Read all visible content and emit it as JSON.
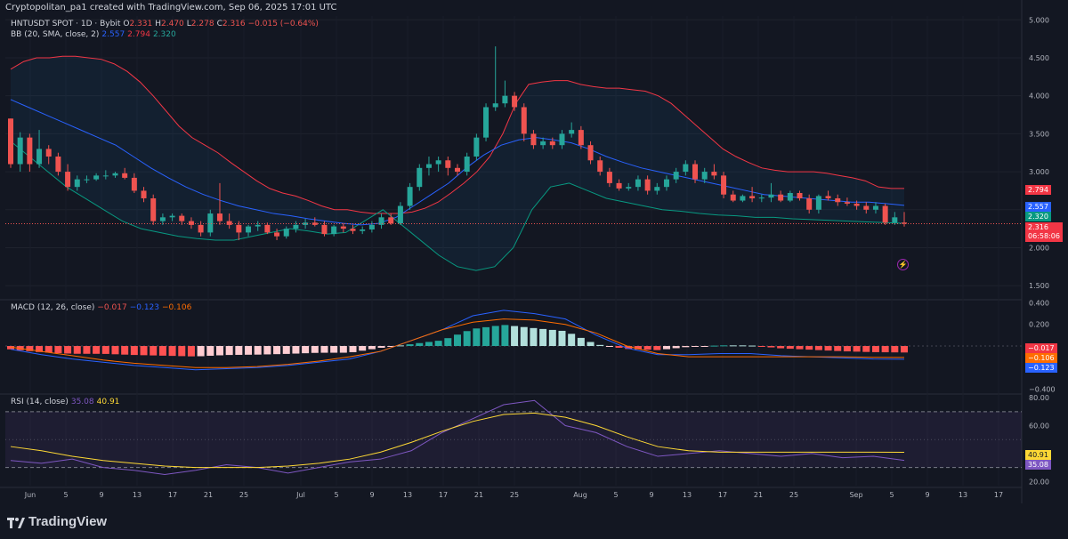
{
  "header": {
    "created": "Cryptopolitan_pa1 created with TradingView.com, Sep 06, 2025 17:01 UTC"
  },
  "price_legend": {
    "symbol": "HNTUSDT SPOT · 1D · Bybit",
    "o_label": "O",
    "o_val": "2.331",
    "h_label": "H",
    "h_val": "2.470",
    "l_label": "L",
    "l_val": "2.278",
    "c_label": "C",
    "c_val": "2.316",
    "change": "−0.015 (−0.64%)"
  },
  "bb_legend": {
    "name": "BB (20, SMA, close, 2)",
    "basis": "2.557",
    "upper": "2.794",
    "lower": "2.320"
  },
  "macd_legend": {
    "name": "MACD (12, 26, close)",
    "hist": "−0.017",
    "macd": "−0.123",
    "signal": "−0.106"
  },
  "rsi_legend": {
    "name": "RSI (14, close)",
    "rsi": "35.08",
    "ma": "40.91"
  },
  "price_axis": [
    "5.000",
    "4.500",
    "4.000",
    "3.500",
    "3.000",
    "2.500",
    "2.000",
    "1.500"
  ],
  "macd_axis": [
    "0.400",
    "0.200",
    "−0.400"
  ],
  "rsi_axis": [
    "80.00",
    "60.00",
    "20.00"
  ],
  "price_labels": {
    "upper": "2.794",
    "basis": "2.557",
    "lower": "2.320",
    "close": "2.316",
    "countdown": "06:58:06"
  },
  "macd_labels": {
    "hist": "−0.017",
    "signal": "−0.106",
    "macd": "−0.123"
  },
  "rsi_labels": {
    "ma": "40.91",
    "rsi": "35.08"
  },
  "x_axis": [
    "Jun",
    "5",
    "9",
    "13",
    "17",
    "21",
    "25",
    "Jul",
    "5",
    "9",
    "13",
    "17",
    "21",
    "25",
    "Aug",
    "5",
    "9",
    "13",
    "17",
    "21",
    "25",
    "Sep",
    "5",
    "9",
    "13",
    "17"
  ],
  "brand": "TradingView",
  "icons": {
    "flash": "lightning-icon",
    "logo": "tradingview-logo-icon"
  },
  "colors": {
    "up": "#26a69a",
    "down": "#ef5350",
    "bb_basis": "#2962ff",
    "bb_upper": "#f23645",
    "bb_lower": "#089981",
    "macd": "#2962ff",
    "signal": "#ff6d00",
    "rsi": "#7e57c2",
    "rsi_ma": "#fdd835"
  },
  "chart_data": {
    "type": "candlestick",
    "symbol": "HNTUSDT",
    "timeframe": "1D",
    "x_start": "2025-05-29",
    "ohlc": [
      [
        3.7,
        3.7,
        3.05,
        3.1
      ],
      [
        3.1,
        3.52,
        3.0,
        3.45
      ],
      [
        3.45,
        3.5,
        3.0,
        3.1
      ],
      [
        3.1,
        3.55,
        3.05,
        3.3
      ],
      [
        3.3,
        3.35,
        3.1,
        3.2
      ],
      [
        3.2,
        3.25,
        2.95,
        3.0
      ],
      [
        3.0,
        3.1,
        2.75,
        2.8
      ],
      [
        2.8,
        2.95,
        2.75,
        2.9
      ],
      [
        2.9,
        2.95,
        2.85,
        2.9
      ],
      [
        2.9,
        2.98,
        2.88,
        2.95
      ],
      [
        2.95,
        3.02,
        2.9,
        2.95
      ],
      [
        2.95,
        3.0,
        2.92,
        2.98
      ],
      [
        2.98,
        3.05,
        2.9,
        2.92
      ],
      [
        2.92,
        2.98,
        2.72,
        2.75
      ],
      [
        2.75,
        2.8,
        2.6,
        2.65
      ],
      [
        2.65,
        2.7,
        2.3,
        2.35
      ],
      [
        2.35,
        2.45,
        2.3,
        2.4
      ],
      [
        2.4,
        2.45,
        2.35,
        2.42
      ],
      [
        2.42,
        2.45,
        2.3,
        2.35
      ],
      [
        2.35,
        2.4,
        2.25,
        2.3
      ],
      [
        2.3,
        2.35,
        2.15,
        2.2
      ],
      [
        2.2,
        2.5,
        2.15,
        2.45
      ],
      [
        2.45,
        2.85,
        2.3,
        2.35
      ],
      [
        2.35,
        2.45,
        2.25,
        2.3
      ],
      [
        2.3,
        2.35,
        2.1,
        2.2
      ],
      [
        2.2,
        2.3,
        2.15,
        2.28
      ],
      [
        2.28,
        2.35,
        2.22,
        2.3
      ],
      [
        2.3,
        2.33,
        2.18,
        2.2
      ],
      [
        2.2,
        2.25,
        2.1,
        2.15
      ],
      [
        2.15,
        2.28,
        2.12,
        2.25
      ],
      [
        2.25,
        2.35,
        2.2,
        2.3
      ],
      [
        2.3,
        2.38,
        2.25,
        2.33
      ],
      [
        2.33,
        2.4,
        2.28,
        2.3
      ],
      [
        2.3,
        2.35,
        2.15,
        2.18
      ],
      [
        2.18,
        2.3,
        2.15,
        2.28
      ],
      [
        2.28,
        2.32,
        2.2,
        2.25
      ],
      [
        2.25,
        2.3,
        2.18,
        2.22
      ],
      [
        2.22,
        2.28,
        2.18,
        2.24
      ],
      [
        2.24,
        2.35,
        2.2,
        2.3
      ],
      [
        2.3,
        2.45,
        2.25,
        2.4
      ],
      [
        2.4,
        2.45,
        2.3,
        2.32
      ],
      [
        2.32,
        2.6,
        2.3,
        2.55
      ],
      [
        2.55,
        2.85,
        2.5,
        2.8
      ],
      [
        2.8,
        3.1,
        2.75,
        3.05
      ],
      [
        3.05,
        3.2,
        2.95,
        3.1
      ],
      [
        3.1,
        3.2,
        3.0,
        3.15
      ],
      [
        3.15,
        3.2,
        2.95,
        3.05
      ],
      [
        3.05,
        3.1,
        2.95,
        3.0
      ],
      [
        3.0,
        3.25,
        2.95,
        3.2
      ],
      [
        3.2,
        3.5,
        3.15,
        3.45
      ],
      [
        3.45,
        3.9,
        3.4,
        3.85
      ],
      [
        3.85,
        4.65,
        3.8,
        3.9
      ],
      [
        3.9,
        4.2,
        3.85,
        4.0
      ],
      [
        4.0,
        4.05,
        3.8,
        3.85
      ],
      [
        3.85,
        3.9,
        3.4,
        3.5
      ],
      [
        3.5,
        3.55,
        3.3,
        3.35
      ],
      [
        3.35,
        3.45,
        3.3,
        3.4
      ],
      [
        3.4,
        3.45,
        3.3,
        3.35
      ],
      [
        3.35,
        3.55,
        3.3,
        3.5
      ],
      [
        3.5,
        3.65,
        3.45,
        3.55
      ],
      [
        3.55,
        3.6,
        3.3,
        3.35
      ],
      [
        3.35,
        3.4,
        3.1,
        3.15
      ],
      [
        3.15,
        3.2,
        2.95,
        3.0
      ],
      [
        3.0,
        3.05,
        2.8,
        2.85
      ],
      [
        2.85,
        2.9,
        2.75,
        2.78
      ],
      [
        2.78,
        2.85,
        2.75,
        2.8
      ],
      [
        2.8,
        2.95,
        2.75,
        2.9
      ],
      [
        2.9,
        2.95,
        2.7,
        2.75
      ],
      [
        2.75,
        2.85,
        2.7,
        2.8
      ],
      [
        2.8,
        2.95,
        2.75,
        2.9
      ],
      [
        2.9,
        3.05,
        2.85,
        3.0
      ],
      [
        3.0,
        3.15,
        2.95,
        3.1
      ],
      [
        3.1,
        3.15,
        2.85,
        2.9
      ],
      [
        2.9,
        3.05,
        2.85,
        3.0
      ],
      [
        3.0,
        3.1,
        2.9,
        2.95
      ],
      [
        2.95,
        3.0,
        2.65,
        2.7
      ],
      [
        2.7,
        2.75,
        2.6,
        2.62
      ],
      [
        2.62,
        2.7,
        2.6,
        2.68
      ],
      [
        2.68,
        2.8,
        2.6,
        2.65
      ],
      [
        2.65,
        2.7,
        2.6,
        2.66
      ],
      [
        2.66,
        2.85,
        2.6,
        2.7
      ],
      [
        2.7,
        2.75,
        2.6,
        2.62
      ],
      [
        2.62,
        2.75,
        2.6,
        2.72
      ],
      [
        2.72,
        2.75,
        2.62,
        2.65
      ],
      [
        2.65,
        2.7,
        2.45,
        2.5
      ],
      [
        2.5,
        2.7,
        2.45,
        2.68
      ],
      [
        2.68,
        2.75,
        2.62,
        2.65
      ],
      [
        2.65,
        2.7,
        2.55,
        2.6
      ],
      [
        2.6,
        2.66,
        2.55,
        2.58
      ],
      [
        2.58,
        2.62,
        2.5,
        2.55
      ],
      [
        2.55,
        2.6,
        2.45,
        2.5
      ],
      [
        2.5,
        2.6,
        2.45,
        2.55
      ],
      [
        2.55,
        2.58,
        2.3,
        2.33
      ],
      [
        2.33,
        2.47,
        2.3,
        2.4
      ],
      [
        2.331,
        2.47,
        2.278,
        2.316
      ]
    ],
    "bb_upper": [
      4.35,
      4.45,
      4.5,
      4.5,
      4.52,
      4.52,
      4.5,
      4.48,
      4.42,
      4.32,
      4.18,
      4.0,
      3.8,
      3.6,
      3.45,
      3.35,
      3.25,
      3.12,
      3.0,
      2.88,
      2.78,
      2.72,
      2.68,
      2.62,
      2.55,
      2.5,
      2.5,
      2.47,
      2.45,
      2.45,
      2.45,
      2.47,
      2.52,
      2.6,
      2.72,
      2.85,
      3.0,
      3.2,
      3.5,
      3.9,
      4.15,
      4.18,
      4.2,
      4.2,
      4.15,
      4.12,
      4.1,
      4.1,
      4.08,
      4.06,
      4.0,
      3.9,
      3.75,
      3.6,
      3.45,
      3.3,
      3.2,
      3.12,
      3.05,
      3.02,
      3.0,
      3.0,
      3.0,
      2.98,
      2.95,
      2.92,
      2.88,
      2.8,
      2.78,
      2.78
    ],
    "bb_basis": [
      3.95,
      3.85,
      3.75,
      3.65,
      3.55,
      3.45,
      3.35,
      3.2,
      3.05,
      2.92,
      2.8,
      2.7,
      2.62,
      2.55,
      2.5,
      2.45,
      2.42,
      2.38,
      2.35,
      2.32,
      2.3,
      2.32,
      2.4,
      2.55,
      2.7,
      2.85,
      3.05,
      3.22,
      3.35,
      3.42,
      3.45,
      3.42,
      3.38,
      3.3,
      3.2,
      3.12,
      3.05,
      3.0,
      2.95,
      2.9,
      2.85,
      2.8,
      2.75,
      2.7,
      2.68,
      2.66,
      2.64,
      2.62,
      2.6,
      2.6,
      2.58,
      2.557
    ],
    "bb_lower": [
      3.4,
      3.2,
      3.0,
      2.8,
      2.65,
      2.5,
      2.35,
      2.25,
      2.2,
      2.15,
      2.12,
      2.1,
      2.1,
      2.15,
      2.2,
      2.25,
      2.22,
      2.18,
      2.2,
      2.35,
      2.5,
      2.3,
      2.1,
      1.9,
      1.75,
      1.7,
      1.75,
      2.0,
      2.5,
      2.8,
      2.85,
      2.75,
      2.65,
      2.6,
      2.55,
      2.5,
      2.48,
      2.45,
      2.43,
      2.42,
      2.4,
      2.4,
      2.38,
      2.37,
      2.36,
      2.35,
      2.34,
      2.33,
      2.32
    ],
    "macd": [
      -0.03,
      -0.08,
      -0.12,
      -0.15,
      -0.18,
      -0.2,
      -0.22,
      -0.21,
      -0.2,
      -0.18,
      -0.15,
      -0.12,
      -0.05,
      0.05,
      0.15,
      0.28,
      0.33,
      0.3,
      0.25,
      0.1,
      -0.02,
      -0.08,
      -0.08,
      -0.07,
      -0.07,
      -0.09,
      -0.1,
      -0.11,
      -0.12,
      -0.123
    ],
    "signal": [
      -0.01,
      -0.05,
      -0.09,
      -0.13,
      -0.16,
      -0.18,
      -0.2,
      -0.2,
      -0.19,
      -0.17,
      -0.14,
      -0.1,
      -0.05,
      0.05,
      0.15,
      0.22,
      0.25,
      0.24,
      0.2,
      0.12,
      0.0,
      -0.07,
      -0.1,
      -0.1,
      -0.1,
      -0.1,
      -0.1,
      -0.1,
      -0.105,
      -0.106
    ],
    "rsi": [
      35,
      33,
      36,
      30,
      28,
      25,
      28,
      32,
      30,
      26,
      30,
      34,
      36,
      42,
      55,
      65,
      75,
      78,
      60,
      55,
      45,
      38,
      40,
      42,
      40,
      38,
      40,
      37,
      38,
      35.08
    ],
    "rsi_ma": [
      45,
      42,
      38,
      35,
      33,
      31,
      30,
      30,
      30,
      31,
      33,
      36,
      41,
      48,
      56,
      63,
      68,
      69,
      66,
      60,
      52,
      45,
      42,
      41,
      41,
      41,
      41,
      41,
      41,
      40.91
    ]
  }
}
